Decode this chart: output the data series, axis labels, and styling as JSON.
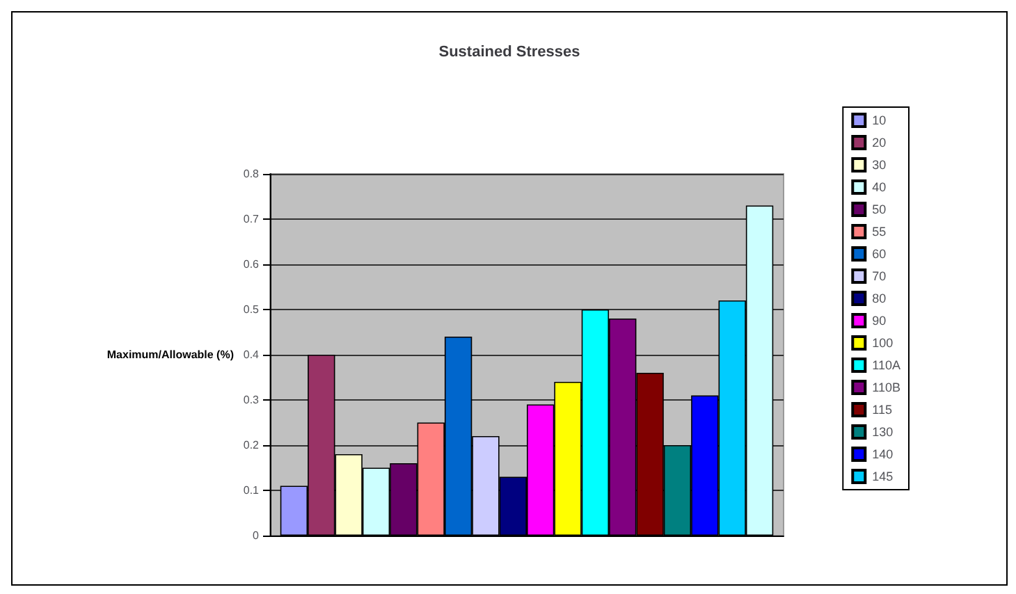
{
  "chart_data": {
    "type": "bar",
    "title": "Sustained Stresses",
    "ylabel": "Maximum/Allowable (%)",
    "categories": [
      null
    ],
    "tick_labels": "y",
    "ylim": [
      0,
      0.8
    ],
    "yticks": [
      0,
      0.1,
      0.2,
      0.3,
      0.4,
      0.5,
      0.6,
      0.7,
      0.8
    ],
    "grid": "y",
    "legend": "right",
    "series": [
      {
        "name": "10",
        "color": "#9999ff",
        "values": [
          0.11
        ]
      },
      {
        "name": "20",
        "color": "#993366",
        "values": [
          0.4
        ]
      },
      {
        "name": "30",
        "color": "#ffffcc",
        "values": [
          0.18
        ]
      },
      {
        "name": "40",
        "color": "#ccffff",
        "values": [
          0.15
        ]
      },
      {
        "name": "50",
        "color": "#660066",
        "values": [
          0.16
        ]
      },
      {
        "name": "55",
        "color": "#ff8080",
        "values": [
          0.25
        ]
      },
      {
        "name": "60",
        "color": "#0066cc",
        "values": [
          0.44
        ]
      },
      {
        "name": "70",
        "color": "#ccccff",
        "values": [
          0.22
        ]
      },
      {
        "name": "80",
        "color": "#000080",
        "values": [
          0.13
        ]
      },
      {
        "name": "90",
        "color": "#ff00ff",
        "values": [
          0.29
        ]
      },
      {
        "name": "100",
        "color": "#ffff00",
        "values": [
          0.34
        ]
      },
      {
        "name": "110A",
        "color": "#00ffff",
        "values": [
          0.5
        ]
      },
      {
        "name": "110B",
        "color": "#800080",
        "values": [
          0.48
        ]
      },
      {
        "name": "115",
        "color": "#800000",
        "values": [
          0.36
        ]
      },
      {
        "name": "130",
        "color": "#008080",
        "values": [
          0.2
        ]
      },
      {
        "name": "140",
        "color": "#0000ff",
        "values": [
          0.31
        ]
      },
      {
        "name": "145",
        "color": "#00ccff",
        "values": [
          0.52
        ]
      },
      {
        "color": "#ccffff",
        "values": [
          0.73
        ]
      }
    ]
  }
}
